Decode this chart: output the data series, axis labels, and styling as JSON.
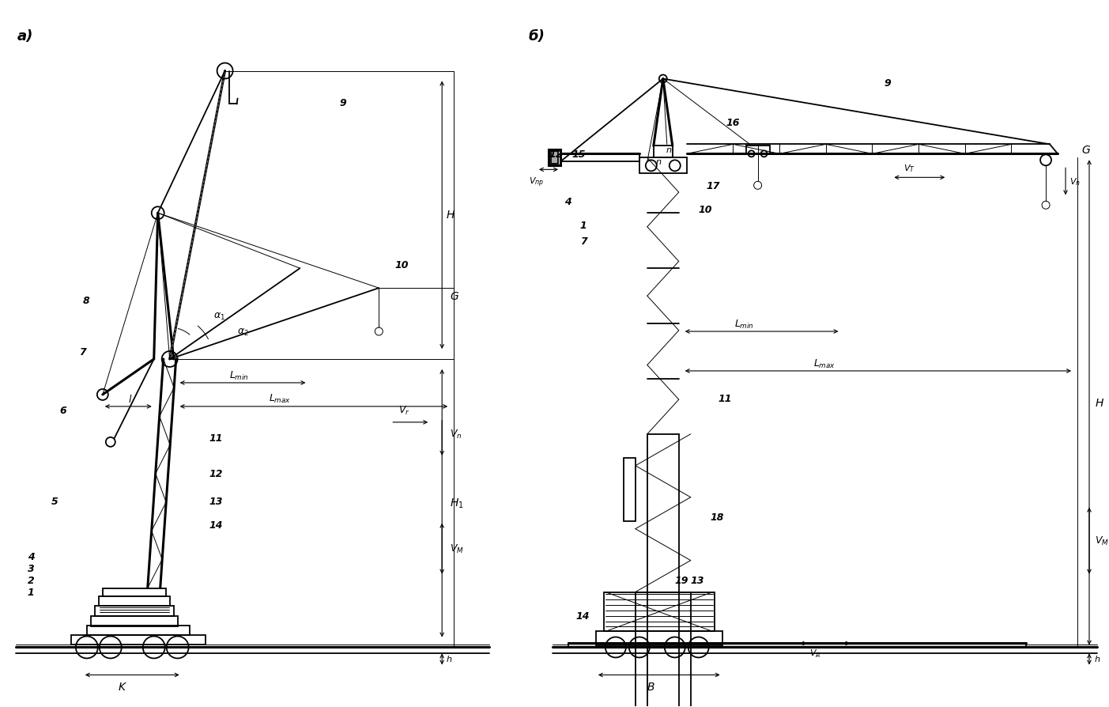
{
  "title_a": "а)",
  "title_b": "б)",
  "bg_color": "#ffffff",
  "lw_thin": 0.7,
  "lw_med": 1.3,
  "lw_thick": 2.2,
  "figsize": [
    14.03,
    8.95
  ],
  "dpi": 100
}
